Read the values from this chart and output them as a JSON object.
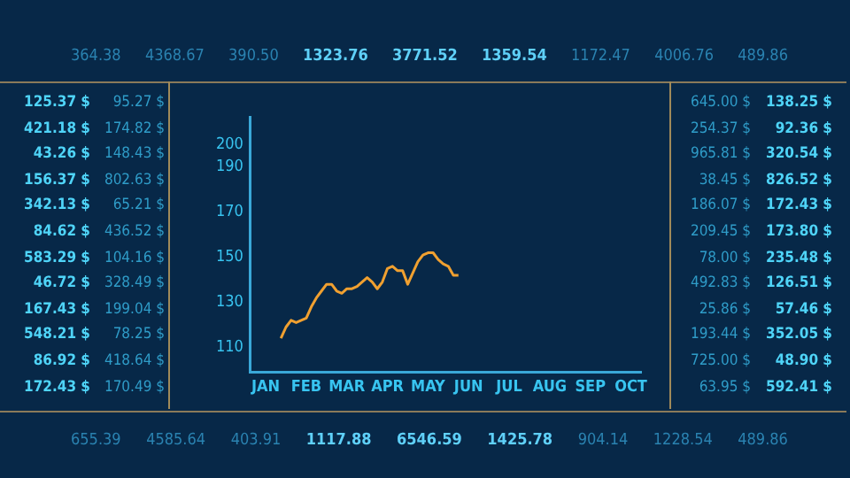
{
  "chart_data": {
    "type": "line",
    "categories": [
      null,
      null,
      null,
      "JAN",
      null,
      null,
      null,
      null,
      null,
      null,
      null,
      "FEB",
      null,
      null,
      null,
      null,
      null,
      null,
      null,
      "MAR",
      null,
      null,
      null,
      null,
      null,
      null,
      null,
      "APR",
      null,
      null,
      null,
      null,
      null,
      null,
      null,
      "MAY",
      null,
      null,
      null,
      null,
      null,
      null,
      null,
      "JUN",
      null,
      null,
      null,
      null,
      null,
      null,
      null,
      "JUL",
      null,
      null,
      null,
      null,
      null,
      null,
      null,
      "AUG",
      null,
      null,
      null,
      null,
      null,
      null,
      null,
      "SEP",
      null,
      null,
      null,
      null,
      null,
      null,
      null,
      "OCT",
      null,
      null
    ],
    "series": [
      {
        "color": "#f0a030",
        "values": [
          null,
          null,
          null,
          null,
          null,
          null,
          114,
          119,
          122,
          121,
          122,
          123,
          128,
          132,
          135,
          138,
          138,
          135,
          134,
          136,
          136,
          137,
          139,
          141,
          139,
          136,
          139,
          145,
          146,
          144,
          144,
          138,
          143,
          148,
          151,
          152,
          152,
          149,
          147,
          146,
          142,
          142,
          null,
          null,
          null,
          null,
          null,
          null,
          null,
          null,
          null,
          null,
          null,
          null,
          null,
          null,
          null,
          null,
          null,
          null,
          null,
          null,
          null,
          null,
          null,
          null,
          null,
          null,
          null,
          null,
          null,
          null,
          null,
          null,
          null,
          null,
          null,
          null
        ]
      }
    ],
    "ylim": [
      99,
      212
    ],
    "yticks": [
      110,
      130,
      150,
      170,
      190,
      200
    ],
    "grid": false,
    "legend": false,
    "annotations": [
      "364.38",
      "4368.67",
      "390.50",
      "1323.76",
      "3771.52",
      "1359.54",
      "1172.47",
      "4006.76",
      "489.86",
      "655.39",
      "4585.64",
      "403.91",
      "1117.88",
      "6546.59",
      "1425.78",
      "904.14",
      "1228.54",
      "489.86",
      "125.37 $",
      "95.27 $",
      "421.18 $",
      "174.82 $",
      "43.26 $",
      "148.43 $",
      "156.37 $",
      "802.63 $",
      "342.13 $",
      "65.21 $",
      "84.62 $",
      "436.52 $",
      "583.29 $",
      "104.16 $",
      "46.72 $",
      "328.49 $",
      "167.43 $",
      "199.04 $",
      "548.21 $",
      "78.25 $",
      "86.92 $",
      "418.64 $",
      "172.43 $",
      "170.49 $",
      "645.00 $",
      "138.25 $",
      "254.37 $",
      "92.36 $",
      "965.81 $",
      "320.54 $",
      "38.45 $",
      "826.52 $",
      "186.07 $",
      "172.43 $",
      "209.45 $",
      "173.80 $",
      "78.00 $",
      "235.48 $",
      "492.83 $",
      "126.51 $",
      "25.86 $",
      "57.46 $",
      "193.44 $",
      "352.05 $",
      "725.00 $",
      "48.90 $",
      "63.95 $",
      "592.41 $"
    ]
  }
}
